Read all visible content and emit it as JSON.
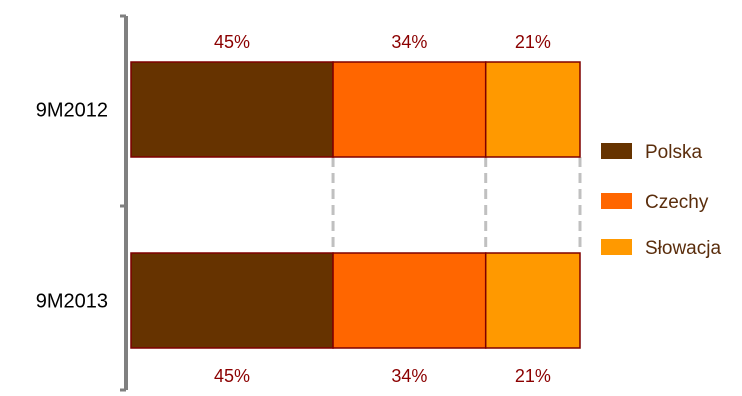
{
  "chart_data": {
    "type": "bar",
    "orientation": "horizontal",
    "stacked": true,
    "normalized_percent": true,
    "categories": [
      "9M2012",
      "9M2013"
    ],
    "series": [
      {
        "name": "Polska",
        "values": [
          45,
          45
        ],
        "labels": [
          "45%",
          "45%"
        ],
        "color": "#663300"
      },
      {
        "name": "Czechy",
        "values": [
          34,
          34
        ],
        "labels": [
          "34%",
          "34%"
        ],
        "color": "#ff6600"
      },
      {
        "name": "Słowacja",
        "values": [
          21,
          21
        ],
        "labels": [
          "21%",
          "21%"
        ],
        "color": "#ff9900"
      }
    ],
    "xlim": [
      0,
      100
    ],
    "grid": false,
    "legend": "right",
    "connector_lines": true,
    "bar_edge_color": "#7f0000",
    "label_color": "#8b0000",
    "axis_color": "#808080",
    "connector_color": "#c0c0c0"
  }
}
